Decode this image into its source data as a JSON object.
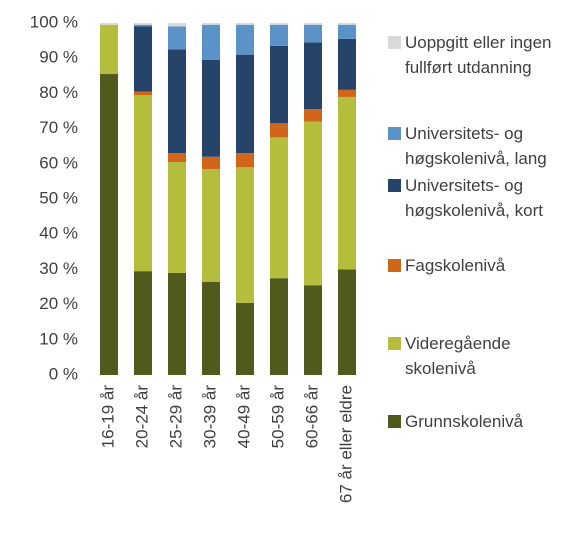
{
  "chart_data": {
    "type": "stacked_bar",
    "categories": [
      "16-19 år",
      "20-24 år",
      "25-29 år",
      "30-39 år",
      "40-49 år",
      "50-59 år",
      "60-66 år",
      "67 år eller eldre"
    ],
    "series": [
      {
        "name": "Grunnskolenivå",
        "color": "#4f5a1c",
        "values": [
          85.5,
          29.5,
          29,
          26.5,
          20.5,
          27.5,
          25.5,
          30
        ]
      },
      {
        "name": "Videregående skolenivå",
        "color": "#b5bd3c",
        "values": [
          14,
          50,
          31.5,
          32,
          38.5,
          40,
          46.5,
          49
        ]
      },
      {
        "name": "Fagskolenivå",
        "color": "#d0661a",
        "values": [
          0,
          1,
          2.5,
          3.5,
          4,
          4,
          3.5,
          2
        ]
      },
      {
        "name": "Universitets- og høgskolenivå, kort",
        "color": "#26446a",
        "values": [
          0,
          18.5,
          29.5,
          27.5,
          28,
          22,
          19,
          14.5
        ]
      },
      {
        "name": "Universitets- og høgskolenivå, lang",
        "color": "#5b93c8",
        "values": [
          0,
          0.5,
          6.5,
          10,
          8.5,
          6,
          5,
          4
        ]
      },
      {
        "name": "Uoppgitt eller ingen fullført utdanning",
        "color": "#d9d9d9",
        "values": [
          0.5,
          0.5,
          1,
          0.5,
          0.5,
          0.5,
          0.5,
          0.5
        ]
      }
    ],
    "ylim": [
      0,
      100
    ],
    "yticks": [
      {
        "value": 0,
        "label": "0 %"
      },
      {
        "value": 10,
        "label": "10 %"
      },
      {
        "value": 20,
        "label": "20 %"
      },
      {
        "value": 30,
        "label": "30 %"
      },
      {
        "value": 40,
        "label": "40 %"
      },
      {
        "value": 50,
        "label": "50 %"
      },
      {
        "value": 60,
        "label": "60 %"
      },
      {
        "value": 70,
        "label": "70 %"
      },
      {
        "value": 80,
        "label": "80 %"
      },
      {
        "value": 90,
        "label": "90 %"
      },
      {
        "value": 100,
        "label": "100 %"
      }
    ],
    "legend": "right"
  }
}
